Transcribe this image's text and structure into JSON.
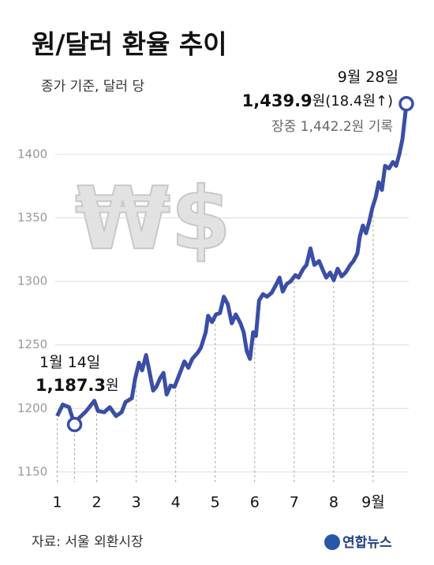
{
  "chart_data": {
    "type": "line",
    "title": "원/달러 환율 추이",
    "subtitle": "종가 기준, 달러 당",
    "watermark": "₩$",
    "source": "자료: 서울 외환시장",
    "logo": "연합뉴스",
    "x": [
      1.0,
      1.14,
      1.3,
      1.44,
      1.54,
      1.74,
      1.94,
      2.03,
      2.19,
      2.33,
      2.49,
      2.63,
      2.73,
      2.89,
      2.97,
      3.07,
      3.15,
      3.25,
      3.33,
      3.43,
      3.51,
      3.61,
      3.69,
      3.77,
      3.87,
      3.97,
      4.12,
      4.22,
      4.32,
      4.42,
      4.56,
      4.64,
      4.76,
      4.82,
      4.92,
      5.02,
      5.12,
      5.22,
      5.32,
      5.42,
      5.52,
      5.64,
      5.72,
      5.8,
      5.88,
      5.96,
      6.03,
      6.11,
      6.21,
      6.31,
      6.43,
      6.55,
      6.63,
      6.71,
      6.81,
      6.91,
      7.03,
      7.11,
      7.23,
      7.31,
      7.41,
      7.51,
      7.63,
      7.71,
      7.81,
      7.91,
      8.0,
      8.1,
      8.2,
      8.3,
      8.42,
      8.5,
      8.6,
      8.66,
      8.74,
      8.82,
      8.9,
      8.98,
      9.06,
      9.14,
      9.22,
      9.3,
      9.4,
      9.5,
      9.58,
      9.66,
      9.74,
      9.82,
      9.84
    ],
    "series": [
      {
        "color": "#3b4ea6",
        "values": [
          1194,
          1203,
          1201,
          1187.3,
          1192,
          1198,
          1206,
          1198,
          1197,
          1201,
          1194,
          1197,
          1205,
          1208,
          1223,
          1236,
          1230,
          1242,
          1230,
          1214,
          1217,
          1224,
          1228,
          1211,
          1218,
          1217,
          1229,
          1237,
          1232,
          1239,
          1244,
          1248,
          1260,
          1273,
          1268,
          1274,
          1275,
          1288,
          1282,
          1267,
          1274,
          1267,
          1260,
          1245,
          1239,
          1260,
          1257,
          1285,
          1290,
          1288,
          1291,
          1298,
          1303,
          1292,
          1298,
          1300,
          1305,
          1303,
          1310,
          1313,
          1326,
          1313,
          1316,
          1310,
          1303,
          1307,
          1301,
          1310,
          1304,
          1307,
          1313,
          1316,
          1322,
          1335,
          1344,
          1338,
          1347,
          1358,
          1366,
          1378,
          1372,
          1391,
          1389,
          1394,
          1391,
          1400,
          1412,
          1434,
          1439.9
        ]
      }
    ],
    "xlim": [
      0.95,
      9.9
    ],
    "xticks": [
      1,
      2,
      3,
      4,
      5,
      6,
      7,
      8,
      {
        "value": 9,
        "label": "9월"
      }
    ],
    "ylim": [
      1140,
      1449
    ],
    "yticks": [
      1150,
      1200,
      1250,
      1300,
      1350,
      1400
    ],
    "grid": true,
    "annotations": [
      {
        "text": "1월 14일"
      },
      {
        "text": "1,187.3",
        "suffix": "원"
      },
      {
        "text": "9월 28일"
      },
      {
        "text": "1,439.9",
        "suffix": "원(18.4원↑)"
      },
      {
        "text": "장중 1,442.2원 기록"
      }
    ]
  }
}
